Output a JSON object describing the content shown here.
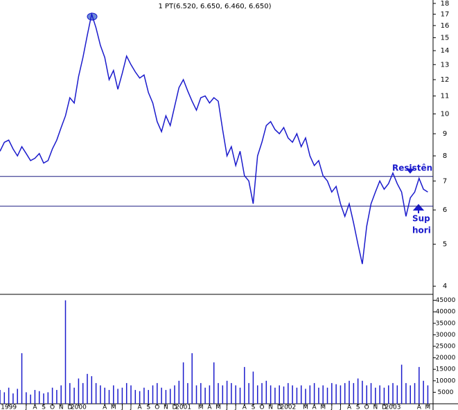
{
  "chart_data": [
    {
      "type": "line",
      "title": "1 PT(6.520, 6.650, 6.460, 6.650)",
      "log_scale": true,
      "color": "#1a1acc",
      "x": [
        3,
        3.5,
        4,
        4.5,
        5,
        5.5,
        6,
        6.5,
        7,
        7.5,
        8,
        8.5,
        9,
        9.5,
        10,
        10.5,
        11,
        11.5,
        12,
        12.5,
        13,
        13.5,
        14,
        14.5,
        15,
        15.5,
        16,
        16.5,
        17,
        17.5,
        18,
        18.5,
        19,
        19.5,
        20,
        20.5,
        21,
        21.5,
        22,
        22.5,
        23,
        23.5,
        24,
        24.5,
        25,
        25.5,
        26,
        26.5,
        27,
        27.5,
        28,
        28.5,
        29,
        29.5,
        30,
        30.5,
        31,
        31.5,
        32,
        32.5,
        33,
        33.5,
        34,
        34.5,
        35,
        35.5,
        36,
        36.5,
        37,
        37.5,
        38,
        38.5,
        39,
        39.5,
        40,
        40.5,
        41,
        41.5,
        42,
        42.5,
        43,
        43.5,
        44,
        44.5,
        45,
        45.5,
        46,
        46.5,
        47,
        47.5,
        48,
        48.5,
        49,
        49.5,
        50,
        50.5,
        51,
        51.5,
        52
      ],
      "values": [
        8.2,
        8.6,
        8.7,
        8.3,
        8.0,
        8.4,
        8.1,
        7.8,
        7.9,
        8.1,
        7.7,
        7.8,
        8.3,
        8.7,
        9.3,
        9.9,
        10.9,
        10.6,
        12.2,
        13.5,
        15.2,
        17.0,
        15.8,
        14.4,
        13.5,
        12.0,
        12.6,
        11.4,
        12.4,
        13.6,
        13.0,
        12.5,
        12.1,
        12.3,
        11.2,
        10.6,
        9.6,
        9.1,
        9.9,
        9.4,
        10.4,
        11.5,
        12.0,
        11.3,
        10.7,
        10.2,
        10.9,
        11.0,
        10.6,
        10.9,
        10.7,
        9.2,
        8.0,
        8.4,
        7.6,
        8.2,
        7.2,
        7.0,
        6.2,
        8.0,
        8.6,
        9.4,
        9.6,
        9.2,
        9.0,
        9.3,
        8.8,
        8.6,
        9.0,
        8.4,
        8.8,
        8.0,
        7.6,
        7.8,
        7.2,
        7.0,
        6.6,
        6.8,
        6.2,
        5.8,
        6.2,
        5.6,
        5.0,
        4.5,
        5.5,
        6.2,
        6.6,
        7.0,
        6.7,
        6.9,
        7.3,
        6.9,
        6.6,
        5.8,
        6.4,
        6.6,
        7.1,
        6.7,
        6.6
      ],
      "xlim": [
        3,
        52.6
      ],
      "ylim": [
        3.83,
        18.33
      ],
      "yticks": [
        4,
        5,
        6,
        7,
        8,
        9,
        10,
        11,
        12,
        13,
        14,
        15,
        16,
        17,
        18
      ],
      "hlines": [
        7.17,
        6.12
      ],
      "annotations": [
        "Resistên",
        "Sup",
        "hori"
      ]
    },
    {
      "type": "bar",
      "color": "#1a1acc",
      "x": [
        3,
        3.5,
        4,
        4.5,
        5,
        5.5,
        6,
        6.5,
        7,
        7.5,
        8,
        8.5,
        9,
        9.5,
        10,
        10.5,
        11,
        11.5,
        12,
        12.5,
        13,
        13.5,
        14,
        14.5,
        15,
        15.5,
        16,
        16.5,
        17,
        17.5,
        18,
        18.5,
        19,
        19.5,
        20,
        20.5,
        21,
        21.5,
        22,
        22.5,
        23,
        23.5,
        24,
        24.5,
        25,
        25.5,
        26,
        26.5,
        27,
        27.5,
        28,
        28.5,
        29,
        29.5,
        30,
        30.5,
        31,
        31.5,
        32,
        32.5,
        33,
        33.5,
        34,
        34.5,
        35,
        35.5,
        36,
        36.5,
        37,
        37.5,
        38,
        38.5,
        39,
        39.5,
        40,
        40.5,
        41,
        41.5,
        42,
        42.5,
        43,
        43.5,
        44,
        44.5,
        45,
        45.5,
        46,
        46.5,
        47,
        47.5,
        48,
        48.5,
        49,
        49.5,
        50,
        50.5,
        51,
        51.5,
        52
      ],
      "values": [
        6000,
        5000,
        7000,
        4500,
        6500,
        22000,
        5000,
        4000,
        6000,
        5500,
        4500,
        5000,
        7000,
        6000,
        8000,
        45000,
        9000,
        7000,
        11000,
        9000,
        13000,
        12000,
        9000,
        8000,
        7000,
        6000,
        8000,
        6500,
        7000,
        9000,
        8000,
        6000,
        5500,
        7000,
        6000,
        8000,
        9000,
        7000,
        6000,
        6500,
        8000,
        10000,
        18000,
        9000,
        22000,
        8000,
        9000,
        7000,
        8000,
        18000,
        9000,
        8000,
        10000,
        9000,
        8000,
        7000,
        16000,
        9000,
        14000,
        8000,
        9000,
        10000,
        8000,
        7000,
        8000,
        7500,
        9000,
        8000,
        7000,
        8000,
        6500,
        8000,
        9000,
        7000,
        8000,
        7000,
        9000,
        8500,
        8000,
        9000,
        10000,
        9000,
        11000,
        10000,
        8000,
        9000,
        7000,
        8000,
        7000,
        8000,
        9000,
        8000,
        17000,
        9000,
        8000,
        9000,
        16000,
        10000,
        8000
      ],
      "xlim": [
        3,
        52.6
      ],
      "ylim": [
        0,
        47600
      ],
      "yticks": [
        5000,
        10000,
        15000,
        20000,
        25000,
        30000,
        35000,
        40000,
        45000
      ],
      "xticks": [
        {
          "value": 4,
          "label": "1999"
        },
        {
          "value": 6,
          "label": "J"
        },
        {
          "value": 7,
          "label": "A"
        },
        {
          "value": 8,
          "label": "S"
        },
        {
          "value": 9,
          "label": "O"
        },
        {
          "value": 10,
          "label": "N"
        },
        {
          "value": 11,
          "label": "D"
        },
        {
          "value": 12,
          "label": "2000"
        },
        {
          "value": 15,
          "label": "A"
        },
        {
          "value": 16,
          "label": "M"
        },
        {
          "value": 17,
          "label": "J"
        },
        {
          "value": 18,
          "label": "J"
        },
        {
          "value": 19,
          "label": "A"
        },
        {
          "value": 20,
          "label": "S"
        },
        {
          "value": 21,
          "label": "O"
        },
        {
          "value": 22,
          "label": "N"
        },
        {
          "value": 23,
          "label": "D"
        },
        {
          "value": 24,
          "label": "2001"
        },
        {
          "value": 26,
          "label": "M"
        },
        {
          "value": 27,
          "label": "A"
        },
        {
          "value": 28,
          "label": "M"
        },
        {
          "value": 29,
          "label": "J"
        },
        {
          "value": 30,
          "label": "J"
        },
        {
          "value": 31,
          "label": "A"
        },
        {
          "value": 32,
          "label": "S"
        },
        {
          "value": 33,
          "label": "O"
        },
        {
          "value": 34,
          "label": "N"
        },
        {
          "value": 35,
          "label": "D"
        },
        {
          "value": 36,
          "label": "2002"
        },
        {
          "value": 38,
          "label": "M"
        },
        {
          "value": 39,
          "label": "A"
        },
        {
          "value": 40,
          "label": "M"
        },
        {
          "value": 41,
          "label": "J"
        },
        {
          "value": 42,
          "label": "J"
        },
        {
          "value": 43,
          "label": "A"
        },
        {
          "value": 44,
          "label": "S"
        },
        {
          "value": 45,
          "label": "O"
        },
        {
          "value": 46,
          "label": "N"
        },
        {
          "value": 47,
          "label": "D"
        },
        {
          "value": 48,
          "label": "2003"
        },
        {
          "value": 51,
          "label": "A"
        },
        {
          "value": 52,
          "label": "M"
        }
      ]
    }
  ]
}
